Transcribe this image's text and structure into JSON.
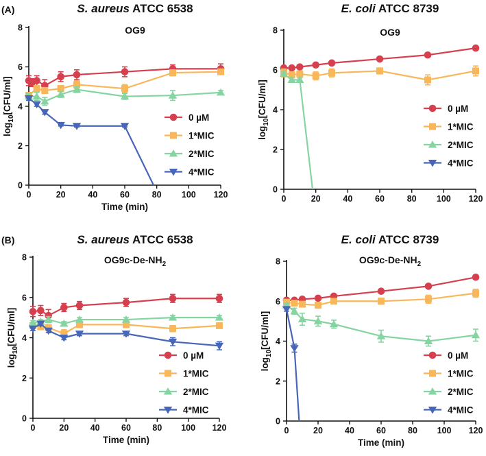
{
  "figure": {
    "panel_labels": [
      "(A)",
      "(B)"
    ]
  },
  "colors": {
    "0 µM": "#d6404e",
    "1*MIC": "#f8b75a",
    "2*MIC": "#86d4a2",
    "4*MIC": "#4766b8"
  },
  "chart_data": [
    {
      "type": "line",
      "title_italic": "S. aureus",
      "title_rest": " ATCC 6538",
      "subtitle": "OG9",
      "xlabel": "Time (min)",
      "ylabel_pre": "log",
      "ylabel_sub": "10",
      "ylabel_post": "[CFU/ml]",
      "xlim": [
        0,
        120
      ],
      "ylim": [
        0,
        8
      ],
      "xticks": [
        0,
        20,
        40,
        60,
        80,
        100,
        120
      ],
      "yticks": [
        0,
        2,
        4,
        6,
        8
      ],
      "legend_position": "right-middle",
      "series": [
        {
          "name": "0 µM",
          "marker": "circle",
          "x": [
            0,
            2,
            5,
            10,
            20,
            30,
            60,
            90,
            120
          ],
          "y": [
            5.3,
            5.2,
            5.3,
            5.05,
            5.5,
            5.6,
            5.75,
            5.9,
            5.9
          ],
          "err": [
            0.25,
            0.2,
            0.25,
            0.3,
            0.25,
            0.25,
            0.25,
            0.2,
            0.25
          ]
        },
        {
          "name": "1*MIC",
          "marker": "square",
          "x": [
            0,
            5,
            10,
            20,
            30,
            60,
            90,
            120
          ],
          "y": [
            4.55,
            4.9,
            4.8,
            4.9,
            5.1,
            4.9,
            5.7,
            5.75
          ],
          "err": [
            0.15,
            0.15,
            0.15,
            0.15,
            0.2,
            0.2,
            0.15,
            0.1
          ]
        },
        {
          "name": "2*MIC",
          "marker": "triangle-up",
          "x": [
            0,
            5,
            10,
            20,
            30,
            60,
            90,
            120
          ],
          "y": [
            4.5,
            4.5,
            4.25,
            4.6,
            4.85,
            4.5,
            4.55,
            4.7
          ],
          "err": [
            0.15,
            0.2,
            0.2,
            0.15,
            0.15,
            0.15,
            0.25,
            0.1
          ]
        },
        {
          "name": "4*MIC",
          "marker": "triangle-down",
          "x": [
            0,
            5,
            10,
            20,
            30,
            60,
            78
          ],
          "y": [
            4.4,
            4.1,
            3.7,
            3.05,
            3.0,
            3.0,
            0
          ],
          "err": [
            0.1,
            0.1,
            0.1,
            0.05,
            0.05,
            0.05,
            0
          ],
          "marker_last": false
        }
      ]
    },
    {
      "type": "line",
      "title_italic": "E. coli",
      "title_rest": " ATCC 8739",
      "subtitle": "OG9",
      "xlabel": "",
      "ylabel_pre": "log",
      "ylabel_sub": "10",
      "ylabel_post": "[CFU/ml]",
      "xlim": [
        0,
        120
      ],
      "ylim": [
        0,
        8
      ],
      "xticks": [
        0,
        20,
        40,
        60,
        80,
        100,
        120
      ],
      "yticks": [
        0,
        2,
        4,
        6,
        8
      ],
      "legend_position": "right-middle",
      "series": [
        {
          "name": "0 µM",
          "marker": "circle",
          "x": [
            0,
            5,
            10,
            20,
            30,
            60,
            90,
            120
          ],
          "y": [
            6.1,
            6.1,
            6.15,
            6.25,
            6.35,
            6.55,
            6.75,
            7.1
          ],
          "err": [
            0.05,
            0.05,
            0.05,
            0.05,
            0.05,
            0.05,
            0.05,
            0.05
          ]
        },
        {
          "name": "1*MIC",
          "marker": "square",
          "x": [
            0,
            5,
            10,
            20,
            30,
            60,
            90,
            120
          ],
          "y": [
            5.85,
            5.75,
            5.8,
            5.7,
            5.85,
            5.95,
            5.5,
            5.95
          ],
          "err": [
            0.2,
            0.15,
            0.15,
            0.2,
            0.2,
            0.15,
            0.25,
            0.25
          ]
        },
        {
          "name": "2*MIC",
          "marker": "triangle-up",
          "x": [
            0,
            5,
            10,
            18
          ],
          "y": [
            5.8,
            5.5,
            5.5,
            0
          ],
          "err": [
            0.1,
            0.1,
            0.1,
            0
          ],
          "marker_last": false
        },
        {
          "name": "4*MIC",
          "marker": "triangle-down",
          "x": [],
          "y": [],
          "err": []
        }
      ]
    },
    {
      "type": "line",
      "title_italic": "S. aureus",
      "title_rest": " ATCC 6538",
      "subtitle_pre": "OG9c-De-NH",
      "subtitle_sub": "2",
      "xlabel": "Time (min)",
      "ylabel_pre": "log",
      "ylabel_sub": "10",
      "ylabel_post": "[CFU/ml]",
      "xlim": [
        0,
        120
      ],
      "ylim": [
        0,
        8
      ],
      "xticks": [
        0,
        20,
        40,
        60,
        80,
        100,
        120
      ],
      "yticks": [
        0,
        2,
        4,
        6,
        8
      ],
      "legend_position": "right-bottom",
      "series": [
        {
          "name": "0 µM",
          "marker": "circle",
          "x": [
            0,
            5,
            10,
            20,
            30,
            60,
            90,
            120
          ],
          "y": [
            5.3,
            5.35,
            5.1,
            5.5,
            5.6,
            5.75,
            5.95,
            5.95
          ],
          "err": [
            0.25,
            0.25,
            0.3,
            0.2,
            0.2,
            0.2,
            0.2,
            0.2
          ]
        },
        {
          "name": "1*MIC",
          "marker": "square",
          "x": [
            0,
            5,
            10,
            20,
            30,
            60,
            90,
            120
          ],
          "y": [
            4.6,
            4.55,
            4.5,
            4.2,
            4.65,
            4.65,
            4.45,
            4.6
          ],
          "err": [
            0.1,
            0.15,
            0.15,
            0.2,
            0.15,
            0.15,
            0.15,
            0.1
          ]
        },
        {
          "name": "2*MIC",
          "marker": "triangle-up",
          "x": [
            0,
            5,
            10,
            20,
            30,
            60,
            90,
            120
          ],
          "y": [
            4.75,
            4.8,
            4.9,
            4.7,
            4.9,
            4.9,
            5.0,
            5.0
          ],
          "err": [
            0.1,
            0.1,
            0.15,
            0.1,
            0.1,
            0.1,
            0.1,
            0.1
          ]
        },
        {
          "name": "4*MIC",
          "marker": "triangle-down",
          "x": [
            0,
            5,
            10,
            20,
            30,
            60,
            90,
            120
          ],
          "y": [
            4.45,
            4.7,
            4.35,
            4.0,
            4.2,
            4.2,
            3.8,
            3.6
          ],
          "err": [
            0.1,
            0.1,
            0.1,
            0.1,
            0.1,
            0.1,
            0.2,
            0.2
          ]
        }
      ]
    },
    {
      "type": "line",
      "title_italic": "E. coli",
      "title_rest": " ATCC 8739",
      "subtitle_pre": "OG9c-De-NH",
      "subtitle_sub": "2",
      "xlabel": "Time (min)",
      "ylabel_pre": "log",
      "ylabel_sub": "10",
      "ylabel_post": "[CFU/ml]",
      "xlim": [
        0,
        120
      ],
      "ylim": [
        0,
        8
      ],
      "xticks": [
        0,
        20,
        40,
        60,
        80,
        100,
        120
      ],
      "yticks": [
        0,
        2,
        4,
        6,
        8
      ],
      "legend_position": "right-bottom",
      "series": [
        {
          "name": "0 µM",
          "marker": "circle",
          "x": [
            0,
            5,
            10,
            20,
            30,
            60,
            90,
            120
          ],
          "y": [
            6.05,
            6.05,
            6.1,
            6.15,
            6.25,
            6.5,
            6.75,
            7.2
          ],
          "err": [
            0.05,
            0.05,
            0.05,
            0.05,
            0.05,
            0.1,
            0.1,
            0.1
          ]
        },
        {
          "name": "1*MIC",
          "marker": "square",
          "x": [
            0,
            5,
            10,
            20,
            30,
            60,
            90,
            120
          ],
          "y": [
            5.95,
            5.9,
            5.85,
            5.8,
            6.0,
            6.0,
            6.1,
            6.4
          ],
          "err": [
            0.1,
            0.1,
            0.1,
            0.1,
            0.1,
            0.15,
            0.2,
            0.2
          ]
        },
        {
          "name": "2*MIC",
          "marker": "triangle-up",
          "x": [
            0,
            5,
            10,
            20,
            30,
            60,
            90,
            120
          ],
          "y": [
            5.8,
            5.5,
            5.1,
            5.0,
            4.85,
            4.25,
            4.0,
            4.3
          ],
          "err": [
            0.1,
            0.15,
            0.3,
            0.25,
            0.2,
            0.3,
            0.25,
            0.3
          ]
        },
        {
          "name": "4*MIC",
          "marker": "triangle-down",
          "x": [
            0,
            5,
            8
          ],
          "y": [
            5.6,
            3.65,
            0
          ],
          "err": [
            0.1,
            0.2,
            0
          ],
          "marker_last": false
        }
      ]
    }
  ]
}
